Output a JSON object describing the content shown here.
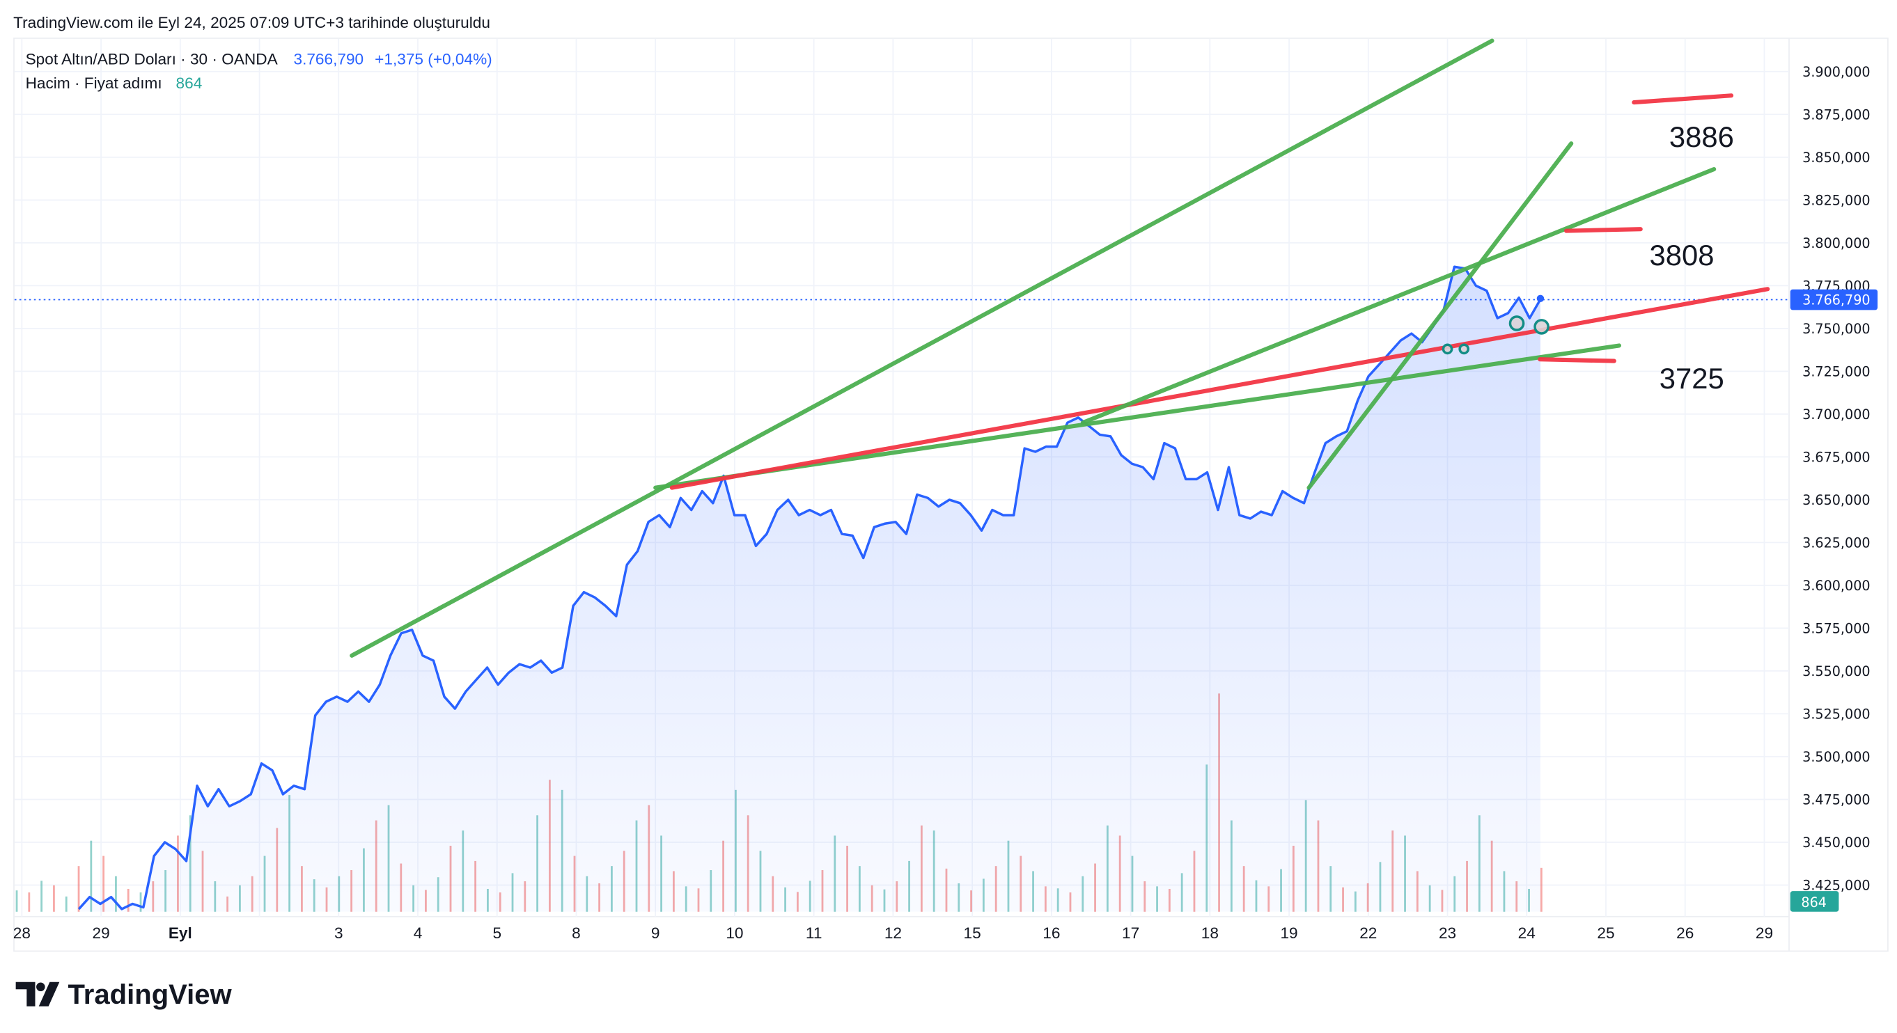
{
  "header": {
    "caption": "TradingView.com ile Eyl 24, 2025 07:09 UTC+3 tarihinde oluşturuldu"
  },
  "legend": {
    "symbol": "Spot Altın/ABD Doları · 30 · OANDA",
    "last": "3.766,790",
    "change": "+1,375 (+0,04%)",
    "volume_label": "Hacim · Fiyat adımı",
    "volume_value": "864"
  },
  "footer": {
    "logo_text": "TradingView"
  },
  "colors": {
    "line": "#2962ff",
    "up_volume": "#26a69a",
    "down_volume": "#ef5350",
    "trend_green": "#4caf50",
    "trend_red": "#f23645",
    "price_badge": "#2962ff",
    "volume_badge": "#26a69a"
  },
  "chart_data": {
    "type": "area",
    "ylim": [
      3405,
      3925
    ],
    "grid": true,
    "y_ticks": [
      "3.900,000",
      "3.875,000",
      "3.850,000",
      "3.825,000",
      "3.800,000",
      "3.775,000",
      "3.750,000",
      "3.725,000",
      "3.700,000",
      "3.675,000",
      "3.650,000",
      "3.625,000",
      "3.600,000",
      "3.575,000",
      "3.550,000",
      "3.525,000",
      "3.500,000",
      "3.475,000",
      "3.450,000",
      "3.425,000"
    ],
    "y_tick_values": [
      3900,
      3875,
      3850,
      3825,
      3800,
      3775,
      3750,
      3725,
      3700,
      3675,
      3650,
      3625,
      3600,
      3575,
      3550,
      3525,
      3500,
      3475,
      3450,
      3425
    ],
    "x_ticks": [
      {
        "label": "28",
        "date": "08-28",
        "bold": false
      },
      {
        "label": "29",
        "date": "08-29",
        "bold": false
      },
      {
        "label": "Eyl",
        "date": "09-01",
        "bold": true
      },
      {
        "label": "",
        "date": "09-02",
        "bold": false
      },
      {
        "label": "3",
        "date": "09-03",
        "bold": false
      },
      {
        "label": "4",
        "date": "09-04",
        "bold": false
      },
      {
        "label": "5",
        "date": "09-05",
        "bold": false
      },
      {
        "label": "8",
        "date": "09-08",
        "bold": false
      },
      {
        "label": "9",
        "date": "09-09",
        "bold": false
      },
      {
        "label": "10",
        "date": "09-10",
        "bold": false
      },
      {
        "label": "11",
        "date": "09-11",
        "bold": false
      },
      {
        "label": "12",
        "date": "09-12",
        "bold": false
      },
      {
        "label": "15",
        "date": "09-15",
        "bold": false
      },
      {
        "label": "16",
        "date": "09-16",
        "bold": false
      },
      {
        "label": "17",
        "date": "09-17",
        "bold": false
      },
      {
        "label": "18",
        "date": "09-18",
        "bold": false
      },
      {
        "label": "19",
        "date": "09-19",
        "bold": false
      },
      {
        "label": "22",
        "date": "09-22",
        "bold": false
      },
      {
        "label": "23",
        "date": "09-23",
        "bold": false
      },
      {
        "label": "24",
        "date": "09-24",
        "bold": false
      },
      {
        "label": "25",
        "date": "09-25",
        "bold": false
      },
      {
        "label": "26",
        "date": "09-26",
        "bold": false
      },
      {
        "label": "29",
        "date": "09-29",
        "bold": false
      }
    ],
    "price": [
      3411,
      3418,
      3414,
      3418,
      3411,
      3414,
      3412,
      3442,
      3450,
      3446,
      3439,
      3483,
      3471,
      3481,
      3471,
      3474,
      3478,
      3496,
      3492,
      3478,
      3483,
      3481,
      3524,
      3532,
      3535,
      3532,
      3538,
      3532,
      3542,
      3559,
      3572,
      3574,
      3559,
      3556,
      3535,
      3528,
      3538,
      3545,
      3552,
      3542,
      3549,
      3554,
      3552,
      3556,
      3549,
      3552,
      3588,
      3596,
      3593,
      3588,
      3582,
      3612,
      3620,
      3637,
      3641,
      3634,
      3651,
      3644,
      3655,
      3648,
      3664,
      3641,
      3641,
      3623,
      3630,
      3644,
      3650,
      3641,
      3644,
      3641,
      3644,
      3630,
      3629,
      3616,
      3634,
      3636,
      3637,
      3630,
      3653,
      3651,
      3646,
      3650,
      3648,
      3641,
      3632,
      3644,
      3641,
      3641,
      3680,
      3678,
      3681,
      3681,
      3695,
      3698,
      3693,
      3688,
      3687,
      3676,
      3671,
      3669,
      3662,
      3683,
      3680,
      3662,
      3662,
      3666,
      3644,
      3669,
      3641,
      3639,
      3643,
      3641,
      3655,
      3651,
      3648,
      3666,
      3683,
      3687,
      3690,
      3708,
      3722,
      3729,
      3736,
      3743,
      3747,
      3742,
      3751,
      3761,
      3786,
      3785,
      3775,
      3772,
      3756,
      3759,
      3768,
      3756,
      3767
    ],
    "last_price": 3766.79,
    "volume": [
      420,
      -380,
      610,
      -520,
      300,
      -900,
      1400,
      -1100,
      700,
      -450,
      380,
      -600,
      820,
      -1500,
      1900,
      -1200,
      600,
      -300,
      520,
      -700,
      1100,
      -1650,
      2300,
      -900,
      640,
      -480,
      700,
      -820,
      1250,
      -1800,
      2100,
      -950,
      520,
      -430,
      680,
      -1300,
      1600,
      -1000,
      450,
      -380,
      760,
      -600,
      1900,
      -2600,
      2400,
      -1100,
      700,
      -560,
      900,
      -1200,
      1800,
      -2100,
      1500,
      -800,
      500,
      -460,
      820,
      -1400,
      2400,
      -1900,
      1200,
      -700,
      480,
      -390,
      610,
      -820,
      1500,
      -1300,
      900,
      -520,
      440,
      -600,
      1000,
      -1700,
      1600,
      -850,
      560,
      -420,
      650,
      -900,
      1400,
      -1100,
      800,
      -500,
      460,
      -380,
      700,
      -950,
      1700,
      -1500,
      1100,
      -600,
      500,
      -450,
      760,
      -1200,
      2900,
      -4300,
      1800,
      -900,
      620,
      -500,
      840,
      -1300,
      2200,
      -1800,
      900,
      -480,
      400,
      -560,
      980,
      -1600,
      1500,
      -800,
      520,
      -430,
      700,
      -1000,
      1900,
      -1400,
      800,
      -600,
      450,
      -864
    ]
  },
  "drawings": {
    "lines": [
      {
        "color": "green",
        "from": [
          "09-03 04:00",
          3559
        ],
        "to": [
          "09-23 13:30",
          3918
        ]
      },
      {
        "color": "green",
        "from": [
          "09-09 00:00",
          3657
        ],
        "to": [
          "09-25 04:00",
          3740
        ]
      },
      {
        "color": "red",
        "from": [
          "09-09 05:00",
          3657
        ],
        "to": [
          "09-29 01:00",
          3773
        ]
      },
      {
        "color": "green",
        "from": [
          "09-19 06:00",
          3657
        ],
        "to": [
          "09-24 13:30",
          3858
        ]
      },
      {
        "color": "green",
        "from": [
          "09-16 09:30",
          3695
        ],
        "to": [
          "09-26 08:45",
          3843
        ]
      },
      {
        "color": "red",
        "from": [
          "09-25 08:30",
          3882
        ],
        "to": [
          "09-26 14:00",
          3886
        ]
      },
      {
        "color": "red",
        "from": [
          "09-24 12:00",
          3807
        ],
        "to": [
          "09-25 10:30",
          3808
        ]
      },
      {
        "color": "red",
        "from": [
          "09-24 04:00",
          3732
        ],
        "to": [
          "09-25 02:30",
          3731
        ]
      }
    ],
    "circles": [
      {
        "at": [
          "09-23 00:00",
          3738
        ],
        "size": "small"
      },
      {
        "at": [
          "09-23 05:00",
          3738
        ],
        "size": "small"
      },
      {
        "at": [
          "09-23 21:00",
          3753
        ],
        "size": "large"
      },
      {
        "at": [
          "09-24 04:30",
          3751
        ],
        "size": "large"
      }
    ],
    "labels": [
      {
        "text": "3886",
        "at": [
          "09-26 05:00",
          3856
        ]
      },
      {
        "text": "3808",
        "at": [
          "09-25 23:00",
          3787
        ]
      },
      {
        "text": "3725",
        "at": [
          "09-26 02:00",
          3715
        ]
      }
    ]
  }
}
